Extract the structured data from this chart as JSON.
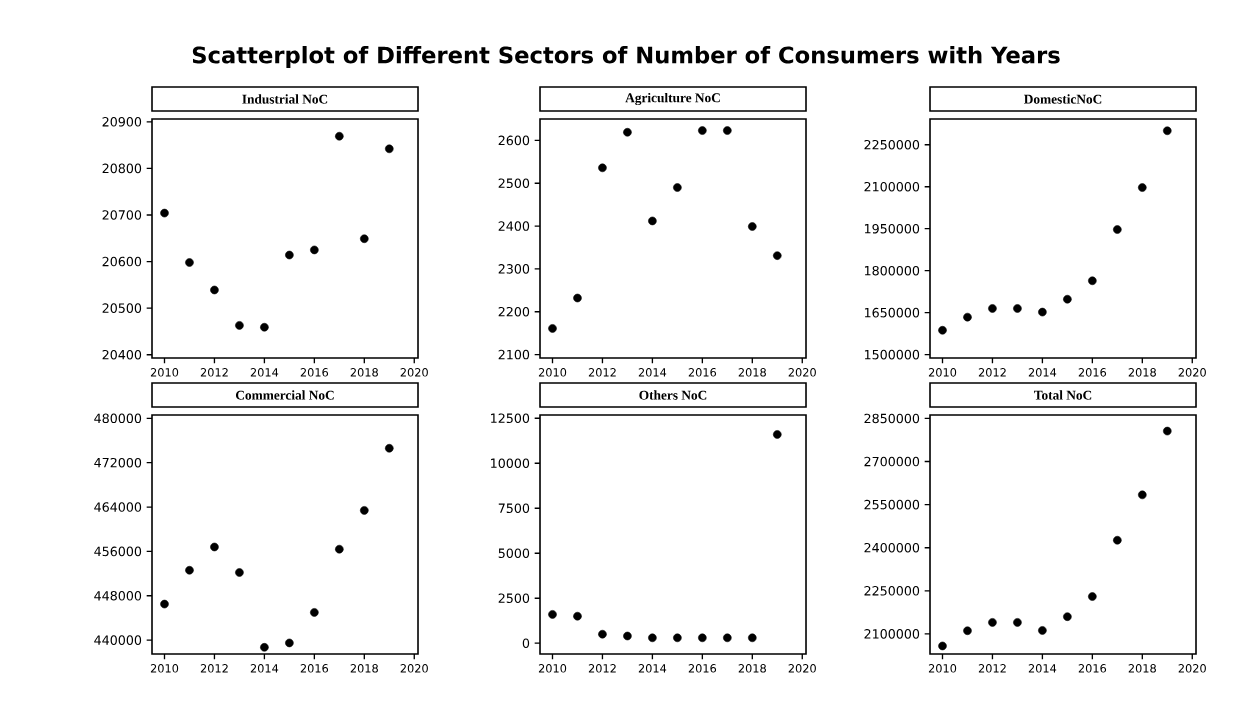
{
  "chart_data": [
    {
      "type": "scatter",
      "title": "Industrial NoC",
      "annotations": [
        "Scatterplot of Different Sectors of Number of Consumers with Years"
      ],
      "x": [
        2010,
        2011,
        2012,
        2013,
        2014,
        2015,
        2016,
        2017,
        2018,
        2019
      ],
      "values": [
        20704,
        20598,
        20539,
        20463,
        20459,
        20614,
        20625,
        20869,
        20649,
        20842
      ],
      "color": "#000000",
      "xlim": [
        2009.5,
        2020.15
      ],
      "ylim": [
        20393,
        20906
      ],
      "xticks": [
        2010,
        2012,
        2014,
        2016,
        2018,
        2020
      ],
      "yticks": [
        20400,
        20500,
        20600,
        20700,
        20800,
        20900
      ]
    },
    {
      "type": "scatter",
      "title": "Agriculture NoC",
      "x": [
        2010,
        2011,
        2012,
        2013,
        2014,
        2015,
        2016,
        2017,
        2018,
        2019
      ],
      "values": [
        2161,
        2232,
        2536,
        2619,
        2412,
        2490,
        2623,
        2623,
        2399,
        2331
      ],
      "color": "#000000",
      "xlim": [
        2009.5,
        2020.15
      ],
      "ylim": [
        2092,
        2650
      ],
      "xticks": [
        2010,
        2012,
        2014,
        2016,
        2018,
        2020
      ],
      "yticks": [
        2100,
        2200,
        2300,
        2400,
        2500,
        2600
      ]
    },
    {
      "type": "scatter",
      "title": "DomesticNoC",
      "x": [
        2010,
        2011,
        2012,
        2013,
        2014,
        2015,
        2016,
        2017,
        2018,
        2019
      ],
      "values": [
        1587000,
        1634000,
        1665000,
        1665000,
        1652000,
        1698000,
        1764000,
        1947000,
        2097000,
        2300000
      ],
      "color": "#000000",
      "xlim": [
        2009.5,
        2020.15
      ],
      "ylim": [
        1488000,
        2342000
      ],
      "xticks": [
        2010,
        2012,
        2014,
        2016,
        2018,
        2020
      ],
      "yticks": [
        1500000,
        1650000,
        1800000,
        1950000,
        2100000,
        2250000
      ]
    },
    {
      "type": "scatter",
      "title": "Commercial NoC",
      "x": [
        2010,
        2011,
        2012,
        2013,
        2014,
        2015,
        2016,
        2017,
        2018,
        2019
      ],
      "values": [
        446500,
        452600,
        456800,
        452200,
        438700,
        439500,
        445000,
        456400,
        463400,
        474600
      ],
      "color": "#000000",
      "xlim": [
        2009.5,
        2020.15
      ],
      "ylim": [
        437500,
        480600
      ],
      "xticks": [
        2010,
        2012,
        2014,
        2016,
        2018,
        2020
      ],
      "yticks": [
        440000,
        448000,
        456000,
        464000,
        472000,
        480000
      ]
    },
    {
      "type": "scatter",
      "title": "Others NoC",
      "x": [
        2010,
        2011,
        2012,
        2013,
        2014,
        2015,
        2016,
        2017,
        2018,
        2019
      ],
      "values": [
        1600,
        1500,
        500,
        400,
        300,
        300,
        300,
        300,
        300,
        11600
      ],
      "color": "#000000",
      "xlim": [
        2009.5,
        2020.15
      ],
      "ylim": [
        -600,
        12680
      ],
      "xticks": [
        2010,
        2012,
        2014,
        2016,
        2018,
        2020
      ],
      "yticks": [
        0,
        2500,
        5000,
        7500,
        10000,
        12500
      ]
    },
    {
      "type": "scatter",
      "title": "Total NoC",
      "x": [
        2010,
        2011,
        2012,
        2013,
        2014,
        2015,
        2016,
        2017,
        2018,
        2019
      ],
      "values": [
        2058000,
        2111000,
        2140000,
        2140000,
        2112000,
        2160000,
        2230000,
        2426000,
        2584000,
        2806000
      ],
      "color": "#000000",
      "xlim": [
        2009.5,
        2020.15
      ],
      "ylim": [
        2030000,
        2862000
      ],
      "xticks": [
        2010,
        2012,
        2014,
        2016,
        2018,
        2020
      ],
      "yticks": [
        2100000,
        2250000,
        2400000,
        2550000,
        2700000,
        2850000
      ]
    }
  ]
}
